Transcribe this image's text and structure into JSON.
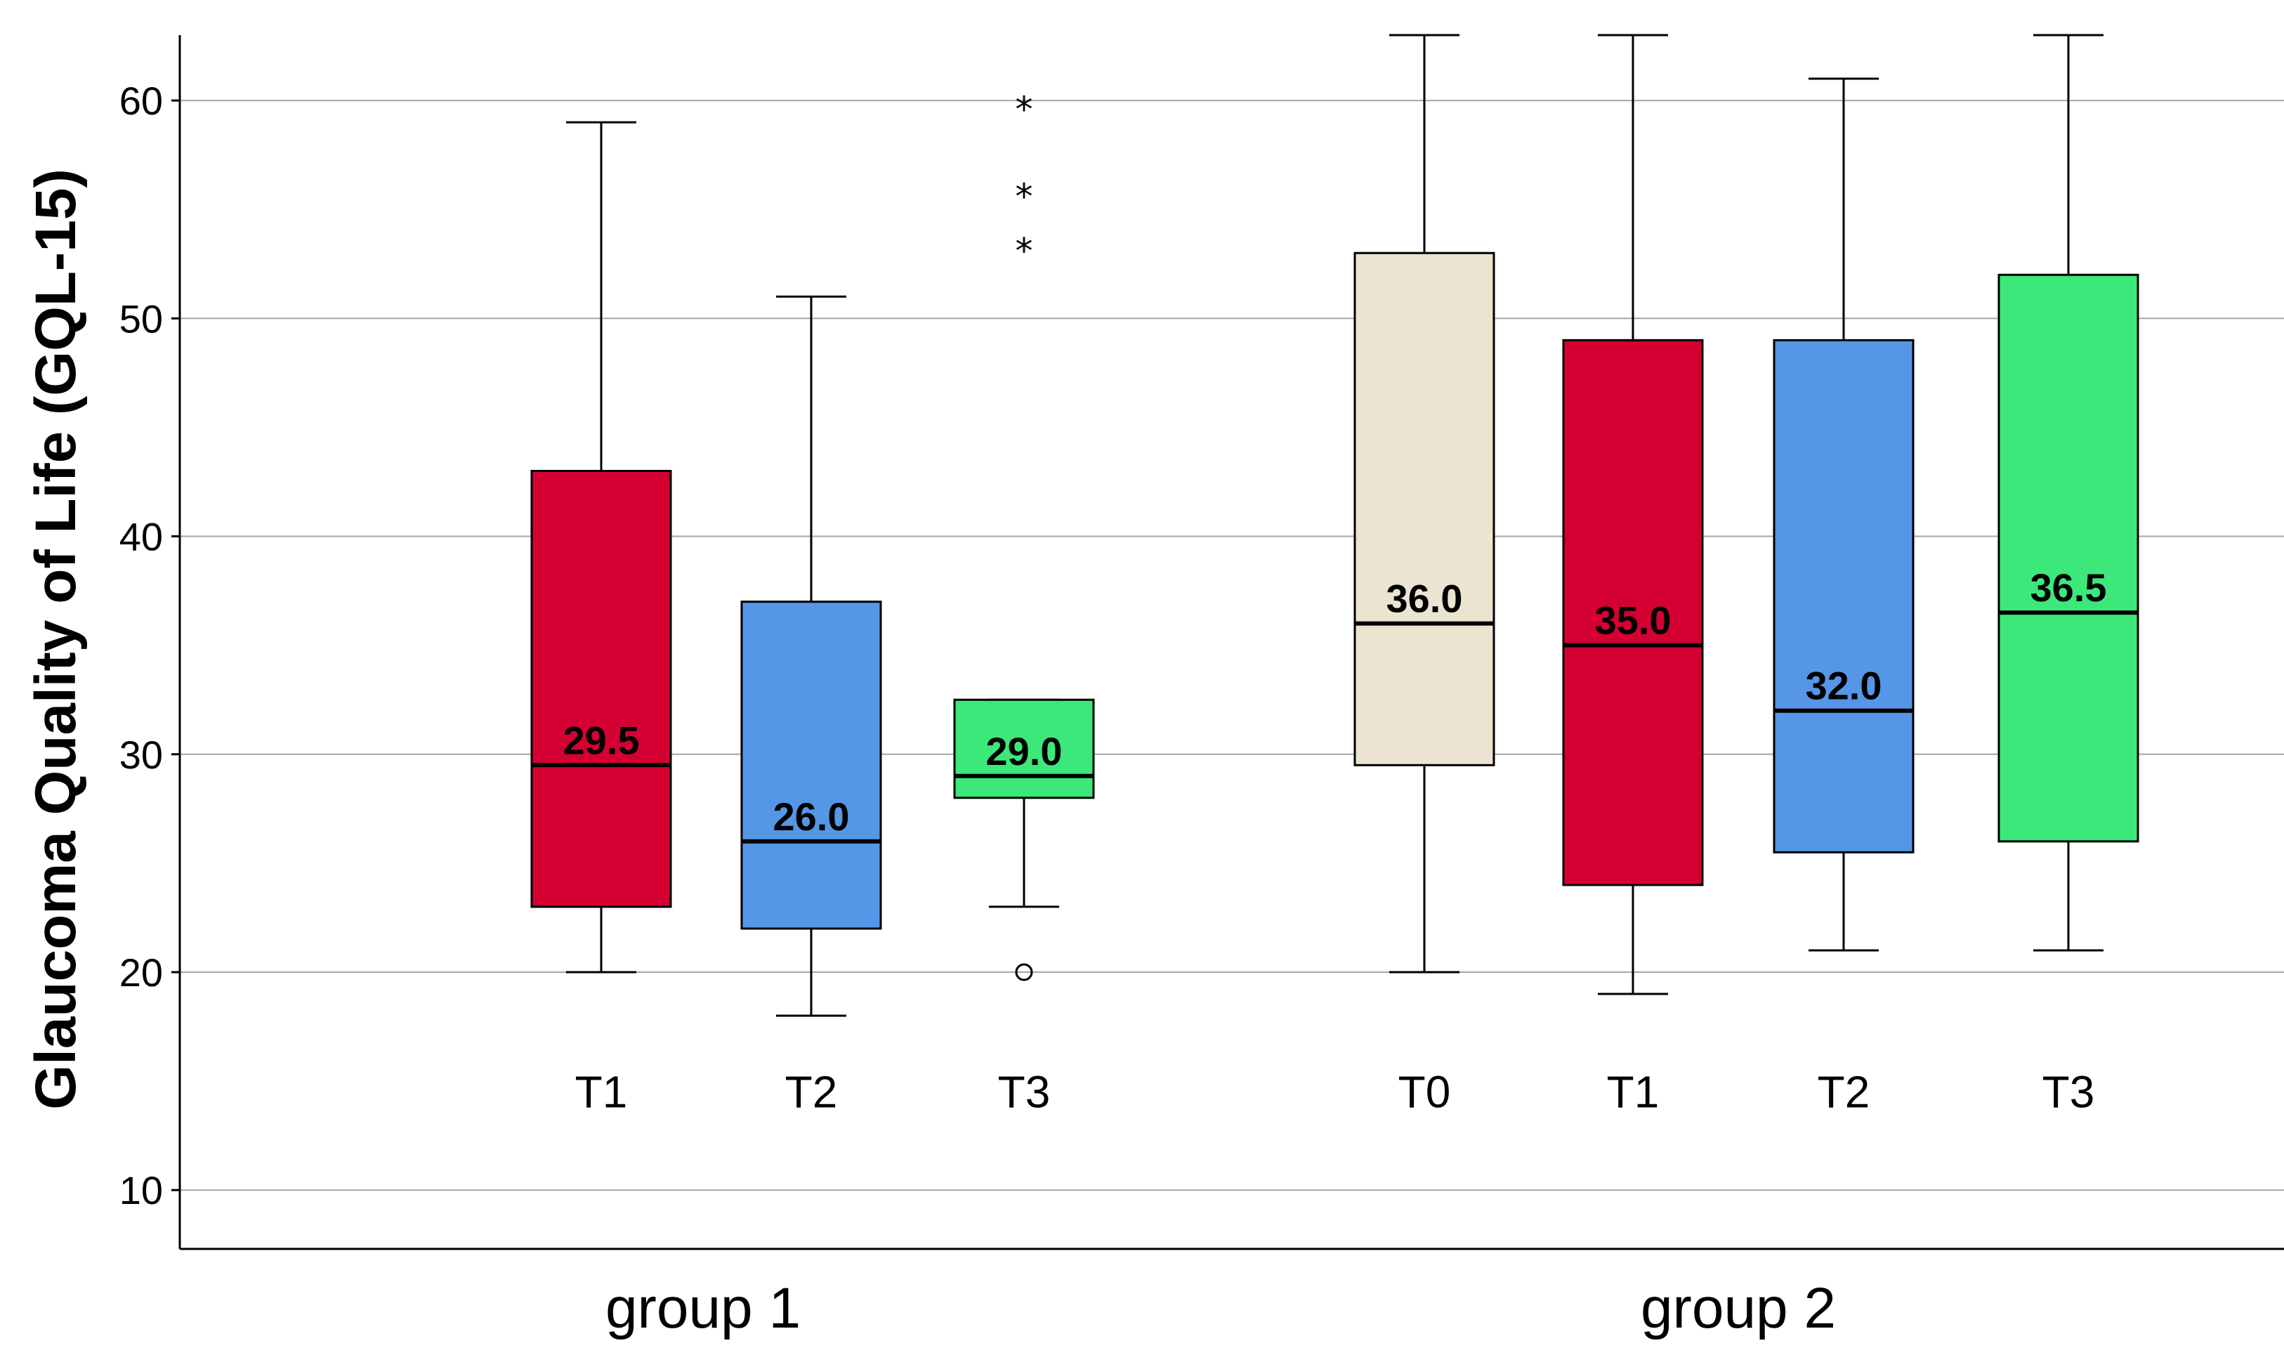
{
  "chart_data": {
    "type": "box",
    "title": "",
    "xlabel": "",
    "ylabel": "Glaucoma Quality of Life (GQL-15)",
    "ylim": [
      7.3,
      63
    ],
    "yticks": [
      10,
      20,
      30,
      40,
      50,
      60
    ],
    "grid": "horizontal",
    "groups": [
      {
        "label": "group 1",
        "boxes": [
          {
            "label": "T1",
            "color": "#D50032",
            "whisker_low": 20,
            "q1": 23,
            "median": 29.5,
            "q3": 43,
            "whisker_high": 59,
            "median_label": "29.5",
            "outliers_star": [],
            "outliers_circle": []
          },
          {
            "label": "T2",
            "color": "#5596E6",
            "whisker_low": 18,
            "q1": 22,
            "median": 26,
            "q3": 37,
            "whisker_high": 51,
            "median_label": "26.0",
            "outliers_star": [],
            "outliers_circle": []
          },
          {
            "label": "T3",
            "color": "#3DE87A",
            "whisker_low": 23,
            "q1": 28,
            "median": 29,
            "q3": 32.5,
            "whisker_high": 32.5,
            "median_label": "29.0",
            "outliers_star": [
              60,
              56,
              53.5
            ],
            "outliers_circle": [
              20
            ]
          }
        ]
      },
      {
        "label": "group 2",
        "boxes": [
          {
            "label": "T0",
            "color": "#EBE4D1",
            "whisker_low": 20,
            "q1": 29.5,
            "median": 36,
            "q3": 53,
            "whisker_high": 63,
            "median_label": "36.0",
            "outliers_star": [],
            "outliers_circle": []
          },
          {
            "label": "T1",
            "color": "#D50032",
            "whisker_low": 19,
            "q1": 24,
            "median": 35,
            "q3": 49,
            "whisker_high": 63,
            "median_label": "35.0",
            "outliers_star": [],
            "outliers_circle": []
          },
          {
            "label": "T2",
            "color": "#5596E6",
            "whisker_low": 21,
            "q1": 25.5,
            "median": 32,
            "q3": 49,
            "whisker_high": 61,
            "median_label": "32.0",
            "outliers_star": [],
            "outliers_circle": []
          },
          {
            "label": "T3",
            "color": "#3DE87A",
            "whisker_low": 21,
            "q1": 26,
            "median": 36.5,
            "q3": 52,
            "whisker_high": 63,
            "median_label": "36.5",
            "outliers_star": [],
            "outliers_circle": []
          }
        ]
      }
    ],
    "category_label_value": 14.5,
    "outlier_star_glyph": "*",
    "outlier_circle_glyph": "o"
  }
}
